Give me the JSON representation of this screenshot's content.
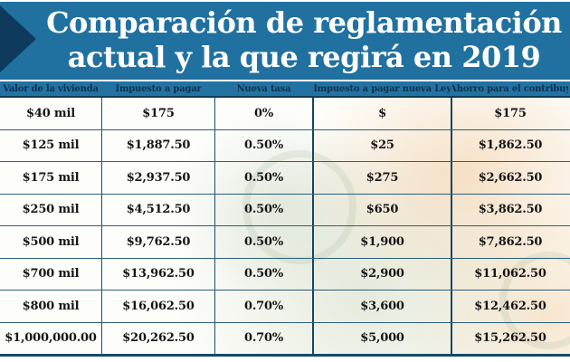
{
  "banner": {
    "title_line1": "Comparación de reglamentación",
    "title_line2": "actual y la que regirá en 2019"
  },
  "table": {
    "columns": [
      "Valor de la vivienda",
      "Impuesto a pagar",
      "Nueva tasa",
      "Impuesto a pagar nueva Ley",
      "Ahorro para el contribuy"
    ],
    "rows": [
      [
        "$40 mil",
        "$175",
        "0%",
        "$",
        "$175"
      ],
      [
        "$125 mil",
        "$1,887.50",
        "0.50%",
        "$25",
        "$1,862.50"
      ],
      [
        "$175 mil",
        "$2,937.50",
        "0.50%",
        "$275",
        "$2,662.50"
      ],
      [
        "$250 mil",
        "$4,512.50",
        "0.50%",
        "$650",
        "$3,862.50"
      ],
      [
        "$500 mil",
        "$9,762.50",
        "0.50%",
        "$1,900",
        "$7,862.50"
      ],
      [
        "$700 mil",
        "$13,962.50",
        "0.50%",
        "$2,900",
        "$11,062.50"
      ],
      [
        "$800 mil",
        "$16,062.50",
        "0.70%",
        "$3,600",
        "$12,462.50"
      ],
      [
        "$1,000,000.00",
        "$20,262.50",
        "0.70%",
        "$5,000",
        "$15,262.50"
      ]
    ]
  },
  "chart_data": {
    "type": "table",
    "title": "Comparación de reglamentación actual y la que regirá en 2019",
    "columns": [
      "Valor de la vivienda",
      "Impuesto a pagar",
      "Nueva tasa",
      "Impuesto a pagar nueva Ley",
      "Ahorro para el contribuy"
    ],
    "rows": [
      [
        "$40 mil",
        "$175",
        "0%",
        "$",
        "$175"
      ],
      [
        "$125 mil",
        "$1,887.50",
        "0.50%",
        "$25",
        "$1,862.50"
      ],
      [
        "$175 mil",
        "$2,937.50",
        "0.50%",
        "$275",
        "$2,662.50"
      ],
      [
        "$250 mil",
        "$4,512.50",
        "0.50%",
        "$650",
        "$3,862.50"
      ],
      [
        "$500 mil",
        "$9,762.50",
        "0.50%",
        "$1,900",
        "$7,862.50"
      ],
      [
        "$700 mil",
        "$13,962.50",
        "0.50%",
        "$2,900",
        "$11,062.50"
      ],
      [
        "$800 mil",
        "$16,062.50",
        "0.70%",
        "$3,600",
        "$12,462.50"
      ],
      [
        "$1,000,000.00",
        "$20,262.50",
        "0.70%",
        "$5,000",
        "$15,262.50"
      ]
    ]
  },
  "colors": {
    "banner_bg": "#2171a0",
    "arrow": "#0e3b5d",
    "header_bg": "#2373a2",
    "header_text": "#0d2f4e",
    "row_border": "#2b5f7c",
    "column_divider": "#1c4e6b",
    "table_bottom_border": "#134b68",
    "body_text": "#151515",
    "title_text": "#ffffff"
  }
}
